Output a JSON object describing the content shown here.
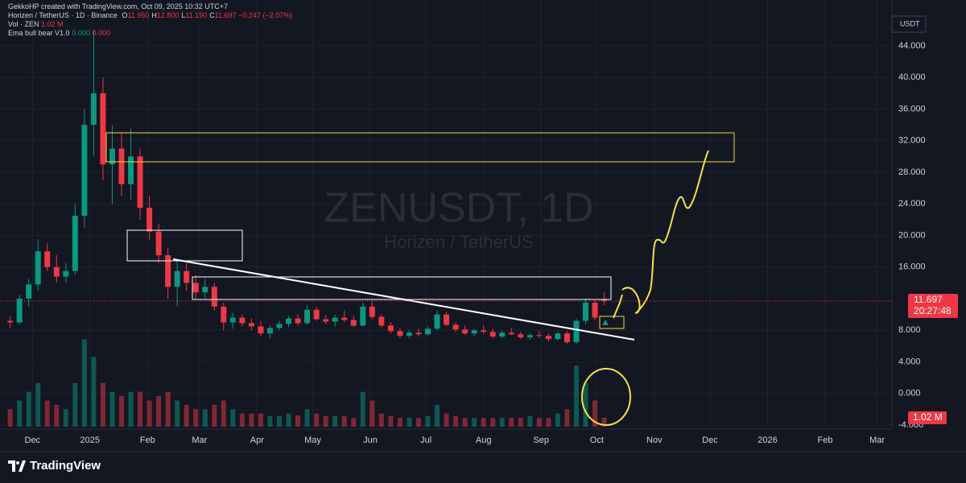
{
  "header": {
    "credit": "GekkoHP created with TradingView.com, Oct 09, 2025 10:32 UTC+7",
    "symbol": "Horizen / TetherUS · 1D · Binance",
    "ohlc": [
      {
        "key": "O",
        "val": "11.950"
      },
      {
        "key": "H",
        "val": "12.800"
      },
      {
        "key": "L",
        "val": "11.190"
      },
      {
        "key": "C",
        "val": "11.697"
      }
    ],
    "change": "−0.247 (−2.07%)",
    "vol_name": "Vol · ZEN",
    "vol_value": "1.02 M",
    "ema_name": "Ema bull bear V1.0",
    "ema_values": [
      "0.000",
      "0.000"
    ]
  },
  "chart_data": {
    "type": "candlestick",
    "title": "ZENUSDT, 1D",
    "subtitle": "Horizen / TetherUS",
    "x": [
      -12,
      -7,
      -2,
      3,
      8,
      13,
      18,
      23,
      28,
      33,
      38,
      43,
      48,
      53,
      58,
      63,
      68,
      73,
      78,
      83,
      88,
      93,
      98,
      103,
      108,
      113,
      118,
      123,
      128,
      133,
      138,
      143,
      148,
      153,
      158,
      163,
      168,
      173,
      178,
      183,
      188,
      193,
      198,
      203,
      208,
      213,
      218,
      223,
      228,
      233,
      238,
      243,
      248,
      253,
      258,
      263,
      268,
      273,
      278,
      283,
      288,
      293,
      298,
      303,
      308
    ],
    "open": [
      9.2,
      9.0,
      12.0,
      13.8,
      18.0,
      16.0,
      14.8,
      15.5,
      22.5,
      34.0,
      38.0,
      29.0,
      31.0,
      26.5,
      30.0,
      23.5,
      20.5,
      17.5,
      13.5,
      15.5,
      14.0,
      12.8,
      13.5,
      11.0,
      9.0,
      9.6,
      8.9,
      8.5,
      7.6,
      8.3,
      8.8,
      9.5,
      8.9,
      10.6,
      9.4,
      9.1,
      9.6,
      9.3,
      8.6,
      11.0,
      9.7,
      8.6,
      7.9,
      7.3,
      7.7,
      7.5,
      8.2,
      10.0,
      8.7,
      8.1,
      7.6,
      8.0,
      7.8,
      7.2,
      7.7,
      7.5,
      7.1,
      7.4,
      7.3,
      6.9,
      7.6,
      6.5,
      9.2,
      11.5,
      11.95
    ],
    "high": [
      9.8,
      12.5,
      14.5,
      19.5,
      19.0,
      17.5,
      16.5,
      24.0,
      36.0,
      46.0,
      40.0,
      34.0,
      33.0,
      33.5,
      31.0,
      25.0,
      21.5,
      18.5,
      17.0,
      16.5,
      15.0,
      14.5,
      14.0,
      11.5,
      10.2,
      10.0,
      9.5,
      9.2,
      8.6,
      9.2,
      9.8,
      10.0,
      11.2,
      11.0,
      9.9,
      10.0,
      10.5,
      9.8,
      11.5,
      11.8,
      10.0,
      9.0,
      8.3,
      8.0,
      8.2,
      8.5,
      10.5,
      10.3,
      9.0,
      8.6,
      8.2,
      8.6,
      8.2,
      8.0,
      8.3,
      7.8,
      7.6,
      7.9,
      7.6,
      7.8,
      7.9,
      9.5,
      12.0,
      11.8,
      12.8
    ],
    "low": [
      8.3,
      8.8,
      11.0,
      13.0,
      15.5,
      14.0,
      14.0,
      15.0,
      21.0,
      30.0,
      27.0,
      24.0,
      25.0,
      24.5,
      22.0,
      19.5,
      16.5,
      12.0,
      11.0,
      13.0,
      12.0,
      12.0,
      10.5,
      8.0,
      8.2,
      8.5,
      8.0,
      7.2,
      7.0,
      8.0,
      8.4,
      8.6,
      8.7,
      9.2,
      8.8,
      8.5,
      9.0,
      8.4,
      8.5,
      9.4,
      8.4,
      7.6,
      7.0,
      7.0,
      7.2,
      7.3,
      8.0,
      8.5,
      7.8,
      7.4,
      7.2,
      7.6,
      7.0,
      7.0,
      7.4,
      6.9,
      6.8,
      7.0,
      6.6,
      6.7,
      6.3,
      6.3,
      8.8,
      9.3,
      11.19
    ],
    "close": [
      9.0,
      12.0,
      13.8,
      18.0,
      16.0,
      14.8,
      15.5,
      22.5,
      34.0,
      38.0,
      29.0,
      31.0,
      26.5,
      30.0,
      23.5,
      20.5,
      17.5,
      13.5,
      15.5,
      14.0,
      12.8,
      13.5,
      11.0,
      9.0,
      9.6,
      8.9,
      8.5,
      7.6,
      8.3,
      8.8,
      9.5,
      8.9,
      10.6,
      9.4,
      9.1,
      9.6,
      9.3,
      8.6,
      11.0,
      9.7,
      8.6,
      7.9,
      7.3,
      7.7,
      7.5,
      8.2,
      10.0,
      8.7,
      8.1,
      7.6,
      8.0,
      7.8,
      7.2,
      7.7,
      7.5,
      7.1,
      7.4,
      7.3,
      6.9,
      7.6,
      6.5,
      9.2,
      11.5,
      9.6,
      11.697
    ],
    "volume": [
      2,
      3,
      4,
      5,
      3,
      2.5,
      2,
      5,
      10,
      8,
      5,
      4,
      3.5,
      4,
      4,
      3,
      3.5,
      4,
      3,
      2.5,
      2,
      2,
      2.5,
      3,
      2,
      1.5,
      1.5,
      1.5,
      1.2,
      1.2,
      1.5,
      1.3,
      2,
      1.5,
      1.2,
      1.2,
      1.2,
      1,
      4,
      3,
      1.5,
      1.2,
      1,
      1,
      1,
      1.2,
      2.5,
      1.5,
      1.2,
      1,
      1,
      1,
      1,
      1,
      1,
      1,
      1.2,
      1,
      1,
      1.5,
      2,
      7,
      5,
      3,
      1.02
    ],
    "volume_ylim": [
      0,
      12
    ],
    "up_color": "#089981",
    "down_color": "#f23645",
    "xlim": [
      -14,
      463
    ],
    "xticks": [
      {
        "value": 0,
        "label": "Dec"
      },
      {
        "value": 31,
        "label": "2025"
      },
      {
        "value": 62,
        "label": "Feb"
      },
      {
        "value": 90,
        "label": "Mar"
      },
      {
        "value": 121,
        "label": "Apr"
      },
      {
        "value": 151,
        "label": "May"
      },
      {
        "value": 182,
        "label": "Jun"
      },
      {
        "value": 212,
        "label": "Jul"
      },
      {
        "value": 243,
        "label": "Aug"
      },
      {
        "value": 274,
        "label": "Sep"
      },
      {
        "value": 304,
        "label": "Oct"
      },
      {
        "value": 335,
        "label": "Nov"
      },
      {
        "value": 365,
        "label": "Dec"
      },
      {
        "value": 396,
        "label": "2026"
      },
      {
        "value": 427,
        "label": "Feb"
      },
      {
        "value": 455,
        "label": "Mar"
      }
    ],
    "ylim": [
      -4.5,
      49.8
    ],
    "yticks": [
      {
        "value": 44,
        "label": "44.000"
      },
      {
        "value": 40,
        "label": "40.000"
      },
      {
        "value": 36,
        "label": "36.000"
      },
      {
        "value": 32,
        "label": "32.000"
      },
      {
        "value": 28,
        "label": "28.000"
      },
      {
        "value": 24,
        "label": "24.000"
      },
      {
        "value": 20,
        "label": "20.000"
      },
      {
        "value": 16,
        "label": "16.000"
      },
      {
        "value": 8,
        "label": "8.000"
      },
      {
        "value": 4,
        "label": "4.000"
      },
      {
        "value": 0,
        "label": "0.000"
      },
      {
        "value": -4,
        "label": "-4.000"
      }
    ],
    "y_unit": "USDT",
    "last_price": {
      "value": 11.697,
      "label": "11.697"
    },
    "countdown": "20:27:48",
    "last_volume_label": "1.02 M"
  },
  "footer": {
    "brand": "TradingView"
  }
}
